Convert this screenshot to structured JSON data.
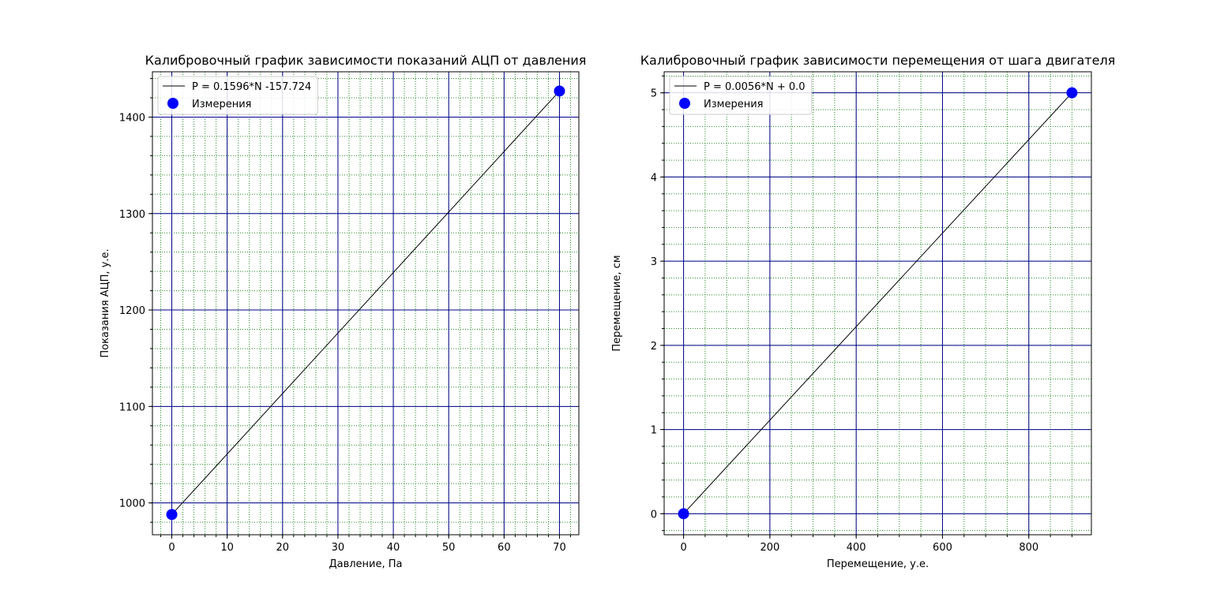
{
  "chart_data": [
    {
      "type": "line",
      "title": "Калибровочный график зависимости показаний АЦП от давления",
      "xlabel": "Давление, Па",
      "ylabel": "Показания АЦП, у.е.",
      "xlim": [
        -3.5,
        73.5
      ],
      "ylim": [
        967,
        1447
      ],
      "xticks": [
        0,
        10,
        20,
        30,
        40,
        50,
        60,
        70
      ],
      "yticks": [
        1000,
        1100,
        1200,
        1300,
        1400
      ],
      "xminor": 2,
      "yminor": 20,
      "grid": true,
      "legend_position": "upper-left",
      "series": [
        {
          "name": "P = 0.1596*N -157.724",
          "kind": "line",
          "x": [
            0,
            70
          ],
          "y": [
            988,
            1427
          ]
        },
        {
          "name": "Измерения",
          "kind": "scatter",
          "x": [
            0,
            70
          ],
          "y": [
            988,
            1427
          ]
        }
      ]
    },
    {
      "type": "line",
      "title": "Калибровочный график зависимости перемещения от шага двигателя",
      "xlabel": "Перемещение, у.е.",
      "ylabel": "Перемещение,  см",
      "xlim": [
        -45,
        945
      ],
      "ylim": [
        -0.25,
        5.25
      ],
      "xticks": [
        0,
        200,
        400,
        600,
        800
      ],
      "yticks": [
        0,
        1,
        2,
        3,
        4,
        5
      ],
      "xminor": 50,
      "yminor": 0.2,
      "grid": true,
      "legend_position": "upper-left",
      "series": [
        {
          "name": "P = 0.0056*N + 0.0",
          "kind": "line",
          "x": [
            0,
            900
          ],
          "y": [
            0,
            5
          ]
        },
        {
          "name": "Измерения",
          "kind": "scatter",
          "x": [
            0,
            900
          ],
          "y": [
            0,
            5
          ]
        }
      ]
    }
  ],
  "colors": {
    "major_grid": "#00008b",
    "minor_grid": "#228b22",
    "fit_line": "#000000",
    "marker": "#0000ff"
  }
}
